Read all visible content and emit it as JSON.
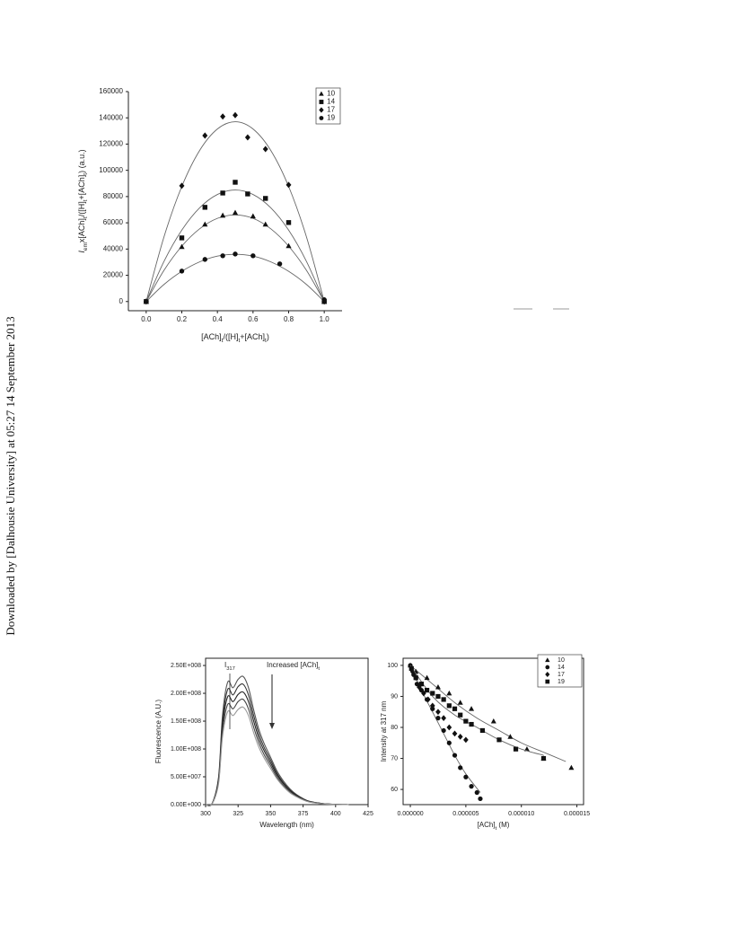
{
  "sidebar": "Downloaded by [Dalhousie University] at 05:27 14 September 2013",
  "chart_data": [
    {
      "type": "scatter",
      "frame": "axes",
      "legend": "top-right",
      "xlabel": [
        {
          "text": "[ACh]"
        },
        {
          "text": "t",
          "sub": true
        },
        {
          "text": "/([H]"
        },
        {
          "text": "t",
          "sub": true
        },
        {
          "text": "+[ACh]"
        },
        {
          "text": "t",
          "sub": true
        },
        {
          "text": ")"
        }
      ],
      "ylabel": [
        {
          "text": "I",
          "italic": true
        },
        {
          "text": "em",
          "sub": true
        },
        {
          "text": "x[ACh]"
        },
        {
          "text": "t",
          "sub": true
        },
        {
          "text": "/([H]"
        },
        {
          "text": "t",
          "sub": true
        },
        {
          "text": "+[ACh]"
        },
        {
          "text": "t",
          "sub": true
        },
        {
          "text": ") (a.u.)"
        }
      ],
      "xlim": [
        -0.1,
        1.1
      ],
      "ylim": [
        -7000,
        160000
      ],
      "xticks": [
        {
          "value": 0,
          "label": "0.0"
        },
        {
          "value": 0.2,
          "label": "0.2"
        },
        {
          "value": 0.4,
          "label": "0.4"
        },
        {
          "value": 0.6,
          "label": "0.6"
        },
        {
          "value": 0.8,
          "label": "0.8"
        },
        {
          "value": 1,
          "label": "1.0"
        }
      ],
      "yticks": [
        0,
        20000,
        40000,
        60000,
        80000,
        100000,
        120000,
        140000,
        160000
      ],
      "series": [
        {
          "name": "10",
          "marker": "triangle",
          "color": "#111111",
          "x": [
            0,
            0.2,
            0.33,
            0.43,
            0.5,
            0.6,
            0.67,
            0.8,
            1
          ],
          "values": [
            0,
            41700,
            58800,
            65600,
            67700,
            65000,
            58800,
            42400,
            0
          ],
          "fit": {
            "x": [
              0,
              0.1,
              0.2,
              0.3,
              0.4,
              0.5,
              0.6,
              0.7,
              0.8,
              0.9,
              1
            ],
            "values": [
              0,
              23800,
              42200,
              55400,
              63400,
              66000,
              63400,
              55400,
              42200,
              23800,
              0
            ]
          }
        },
        {
          "name": "14",
          "marker": "square",
          "color": "#111111",
          "x": [
            0,
            0.2,
            0.33,
            0.43,
            0.5,
            0.57,
            0.67,
            0.8,
            1
          ],
          "values": [
            0,
            48500,
            71800,
            82700,
            90900,
            82000,
            78600,
            60200,
            0
          ],
          "fit": {
            "x": [
              0,
              0.1,
              0.2,
              0.3,
              0.4,
              0.5,
              0.6,
              0.7,
              0.8,
              0.9,
              1
            ],
            "values": [
              0,
              30600,
              54400,
              71400,
              81600,
              85000,
              81600,
              71400,
              54400,
              30600,
              0
            ]
          }
        },
        {
          "name": "17",
          "marker": "diamond",
          "color": "#111111",
          "x": [
            0,
            0.2,
            0.33,
            0.43,
            0.5,
            0.57,
            0.67,
            0.8,
            1
          ],
          "values": [
            0,
            88200,
            126500,
            141000,
            142000,
            125100,
            116200,
            88900,
            0
          ],
          "fit": {
            "x": [
              0,
              0.1,
              0.2,
              0.3,
              0.4,
              0.5,
              0.6,
              0.7,
              0.8,
              0.9,
              1
            ],
            "values": [
              0,
              49300,
              87700,
              115100,
              131500,
              137000,
              131500,
              115100,
              87700,
              49300,
              0
            ]
          }
        },
        {
          "name": "19",
          "marker": "circle",
          "color": "#111111",
          "x": [
            0,
            0.2,
            0.33,
            0.43,
            0.5,
            0.6,
            0.75,
            1
          ],
          "values": [
            0,
            23200,
            32100,
            34900,
            36200,
            34900,
            28700,
            1400
          ],
          "fit": {
            "x": [
              0,
              0.1,
              0.2,
              0.3,
              0.4,
              0.5,
              0.6,
              0.7,
              0.8,
              0.9,
              1
            ],
            "values": [
              0,
              13000,
              23000,
              30200,
              34600,
              36000,
              34600,
              30200,
              23000,
              13000,
              0
            ]
          }
        }
      ]
    },
    {
      "type": "line",
      "frame": "box",
      "xlabel": [
        {
          "text": "Wavelength (nm)"
        }
      ],
      "ylabel": [
        {
          "text": "Fluorescence (A.U.)"
        }
      ],
      "annotations": [
        [
          {
            "text": "I"
          },
          {
            "text": "317",
            "sub": true
          }
        ],
        [
          {
            "text": "Increased [ACh]"
          },
          {
            "text": "t",
            "sub": true
          }
        ]
      ],
      "xlim": [
        300,
        425
      ],
      "ylim": [
        0,
        263000000
      ],
      "xticks": [
        300,
        325,
        350,
        375,
        400,
        425
      ],
      "yticks": [
        {
          "value": 0,
          "label": "0.00E+000"
        },
        {
          "value": 50000000,
          "label": "5.00E+007"
        },
        {
          "value": 100000000,
          "label": "1.00E+008"
        },
        {
          "value": 150000000,
          "label": "1.50E+008"
        },
        {
          "value": 200000000,
          "label": "2.00E+008"
        },
        {
          "value": 250000000,
          "label": "2.50E+008"
        }
      ],
      "x": [
        300,
        305,
        310,
        313,
        317,
        321,
        325,
        329,
        333,
        337,
        341,
        345,
        350,
        355,
        360,
        365,
        370,
        375,
        380,
        390,
        400,
        410
      ],
      "series": [
        {
          "color": "#555555",
          "values": [
            0,
            2000000.0,
            50000000.0,
            160000000.0,
            220000000.0,
            210000000.0,
            225000000.0,
            230000000.0,
            210000000.0,
            170000000.0,
            135000000.0,
            110000000.0,
            85000000.0,
            60000000.0,
            42000000.0,
            28000000.0,
            18000000.0,
            11000000.0,
            6000000.0,
            2000000.0,
            500000.0,
            0
          ]
        },
        {
          "color": "#333333",
          "values": [
            0,
            1900000.0,
            47000000.0,
            150000000.0,
            207000000.0,
            197000000.0,
            212000000.0,
            216000000.0,
            197000000.0,
            160000000.0,
            127000000.0,
            103000000.0,
            80000000.0,
            56000000.0,
            39000000.0,
            26000000.0,
            17000000.0,
            10000000.0,
            5600000.0,
            1900000.0,
            500000.0,
            0
          ]
        },
        {
          "color": "#222222",
          "values": [
            0,
            1800000.0,
            44000000.0,
            141000000.0,
            194000000.0,
            185000000.0,
            198000000.0,
            202000000.0,
            185000000.0,
            150000000.0,
            119000000.0,
            97000000.0,
            75000000.0,
            53000000.0,
            37000000.0,
            25000000.0,
            16000000.0,
            9700000.0,
            5300000.0,
            1800000.0,
            400000.0,
            0
          ]
        },
        {
          "color": "#444444",
          "values": [
            0,
            1600000.0,
            41000000.0,
            131000000.0,
            180000000.0,
            172000000.0,
            185000000.0,
            189000000.0,
            172000000.0,
            139000000.0,
            111000000.0,
            90000000.0,
            70000000.0,
            49000000.0,
            34000000.0,
            23000000.0,
            15000000.0,
            9000000.0,
            4900000.0,
            1600000.0,
            400000.0,
            0
          ]
        },
        {
          "color": "#999999",
          "values": [
            0,
            1500000.0,
            38000000.0,
            122000000.0,
            167000000.0,
            160000000.0,
            171000000.0,
            175000000.0,
            160000000.0,
            129000000.0,
            103000000.0,
            84000000.0,
            65000000.0,
            46000000.0,
            32000000.0,
            21000000.0,
            14000000.0,
            8400000.0,
            4600000.0,
            1500000.0,
            400000.0,
            0
          ]
        }
      ]
    },
    {
      "type": "scatter",
      "frame": "box",
      "legend": "top-right",
      "xlabel": [
        {
          "text": "[ACh]"
        },
        {
          "text": "t",
          "sub": true
        },
        {
          "text": " (M)"
        }
      ],
      "ylabel": [
        {
          "text": "Intensity at 317 nm"
        }
      ],
      "xlim": [
        -6.5e-07,
        1.56e-05
      ],
      "ylim": [
        55.1,
        102.3
      ],
      "xticks": [
        {
          "value": 0,
          "label": "0.000000"
        },
        {
          "value": 5e-06,
          "label": "0.000005"
        },
        {
          "value": 1e-05,
          "label": "0.000010"
        },
        {
          "value": 1.5e-05,
          "label": "0.000015"
        }
      ],
      "yticks": [
        60,
        70,
        80,
        90,
        100
      ],
      "series": [
        {
          "name": "10",
          "marker": "triangle",
          "color": "#111111",
          "x": [
            0,
            5e-07,
            1.5e-06,
            2.5e-06,
            3.5e-06,
            4.5e-06,
            5.5e-06,
            7.5e-06,
            9e-06,
            1.05e-05,
            1.2e-05,
            1.45e-05
          ],
          "values": [
            100,
            98,
            96,
            93,
            91,
            88,
            86,
            82,
            77,
            73,
            70,
            67
          ],
          "fit": {
            "x": [
              0,
              2e-06,
              4e-06,
              6e-06,
              8e-06,
              1e-05,
              1.2e-05,
              1.4e-05
            ],
            "values": [
              100,
              94,
              88,
              83,
              79,
              75,
              72,
              69
            ]
          }
        },
        {
          "name": "14",
          "marker": "circle",
          "color": "#111111",
          "x": [
            0,
            3e-07,
            6e-07,
            1e-06,
            1.5e-06,
            2e-06,
            2.5e-06,
            3e-06,
            3.5e-06,
            4e-06,
            4.5e-06,
            5e-06,
            5.5e-06,
            6e-06,
            6.3e-06
          ],
          "values": [
            100,
            97,
            94,
            92,
            89,
            86,
            83,
            79,
            75,
            71,
            67,
            64,
            61,
            59,
            57
          ],
          "fit": {
            "x": [
              0,
              1e-06,
              2e-06,
              3e-06,
              4e-06,
              5e-06,
              6.3e-06
            ],
            "values": [
              100,
              92,
              85,
              78,
              71,
              65,
              59
            ]
          }
        },
        {
          "name": "17",
          "marker": "diamond",
          "color": "#111111",
          "x": [
            2e-07,
            5e-07,
            8e-07,
            1.2e-06,
            1.6e-06,
            2e-06,
            2.5e-06,
            3e-06,
            3.5e-06,
            4e-06,
            4.5e-06,
            5e-06
          ],
          "values": [
            98,
            96,
            93,
            91,
            89,
            87,
            85,
            83,
            80,
            78,
            77,
            76
          ]
        },
        {
          "name": "19",
          "marker": "square",
          "color": "#111111",
          "x": [
            1e-07,
            5e-07,
            1e-06,
            1.5e-06,
            2e-06,
            2.5e-06,
            3e-06,
            3.5e-06,
            4e-06,
            4.5e-06,
            5e-06,
            5.5e-06,
            6.5e-06,
            8e-06,
            9.5e-06,
            1.2e-05
          ],
          "values": [
            99,
            96,
            94,
            92,
            91,
            90,
            89,
            87,
            86,
            84,
            82,
            81,
            79,
            76,
            73,
            70
          ],
          "fit": {
            "x": [
              0,
              2e-06,
              4e-06,
              6e-06,
              8e-06,
              1e-05,
              1.2e-05
            ],
            "values": [
              100,
              90,
              84,
              80,
              76,
              73,
              71
            ]
          }
        }
      ]
    }
  ]
}
